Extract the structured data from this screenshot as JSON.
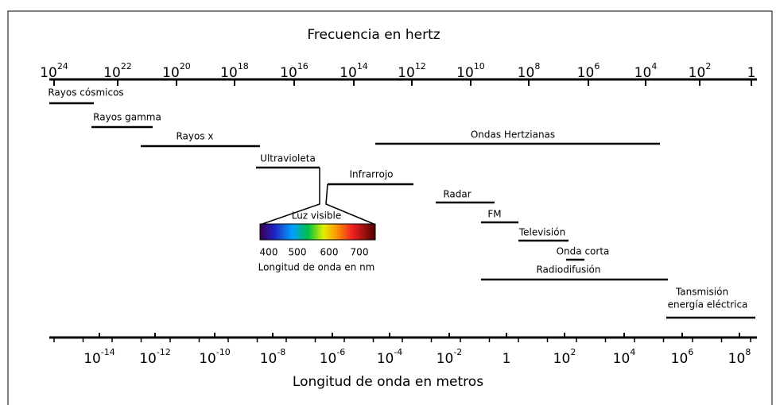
{
  "title_top": "Frecuencia en hertz",
  "title_bottom": "Longitud de onda en metros",
  "top_axis": {
    "ticks": [
      {
        "base": "10",
        "exponent": "24"
      },
      {
        "base": "10",
        "exponent": "22"
      },
      {
        "base": "10",
        "exponent": "20"
      },
      {
        "base": "10",
        "exponent": "18"
      },
      {
        "base": "10",
        "exponent": "16"
      },
      {
        "base": "10",
        "exponent": "14"
      },
      {
        "base": "10",
        "exponent": "12"
      },
      {
        "base": "10",
        "exponent": "10"
      },
      {
        "base": "10",
        "exponent": "8"
      },
      {
        "base": "10",
        "exponent": "6"
      },
      {
        "base": "10",
        "exponent": "4"
      },
      {
        "base": "10",
        "exponent": "2"
      },
      {
        "base": "1"
      }
    ]
  },
  "bottom_axis": {
    "ticks": [
      {
        "base": "10",
        "exponent": "-14"
      },
      {
        "base": "10",
        "exponent": "-12"
      },
      {
        "base": "10",
        "exponent": "-10"
      },
      {
        "base": "10",
        "exponent": "-8"
      },
      {
        "base": "10",
        "exponent": "-6"
      },
      {
        "base": "10",
        "exponent": "-4"
      },
      {
        "base": "10",
        "exponent": "-2"
      },
      {
        "base": "1"
      },
      {
        "base": "10",
        "exponent": "2"
      },
      {
        "base": "10",
        "exponent": "4"
      },
      {
        "base": "10",
        "exponent": "6"
      },
      {
        "base": "10",
        "exponent": "8"
      }
    ]
  },
  "bands": [
    {
      "label": [
        "Rayos cósmicos"
      ]
    },
    {
      "label": [
        "Rayos gamma"
      ]
    },
    {
      "label": [
        "Rayos x"
      ]
    },
    {
      "label": [
        "Ondas Hertzianas"
      ]
    },
    {
      "label": [
        "Ultravioleta"
      ]
    },
    {
      "label": [
        "Infrarrojo"
      ]
    },
    {
      "label": [
        "Radar"
      ]
    },
    {
      "label": [
        "FM"
      ]
    },
    {
      "label": [
        "Televisión"
      ]
    },
    {
      "label": [
        "Onda corta"
      ]
    },
    {
      "label": [
        "Radiodifusión"
      ]
    },
    {
      "label": [
        "Tansmisión",
        "energía eléctrica"
      ]
    }
  ],
  "visible": {
    "title": "Luz visible",
    "ticks": [
      "400",
      "500",
      "600",
      "700"
    ],
    "caption": "Longitud de onda en nm"
  }
}
